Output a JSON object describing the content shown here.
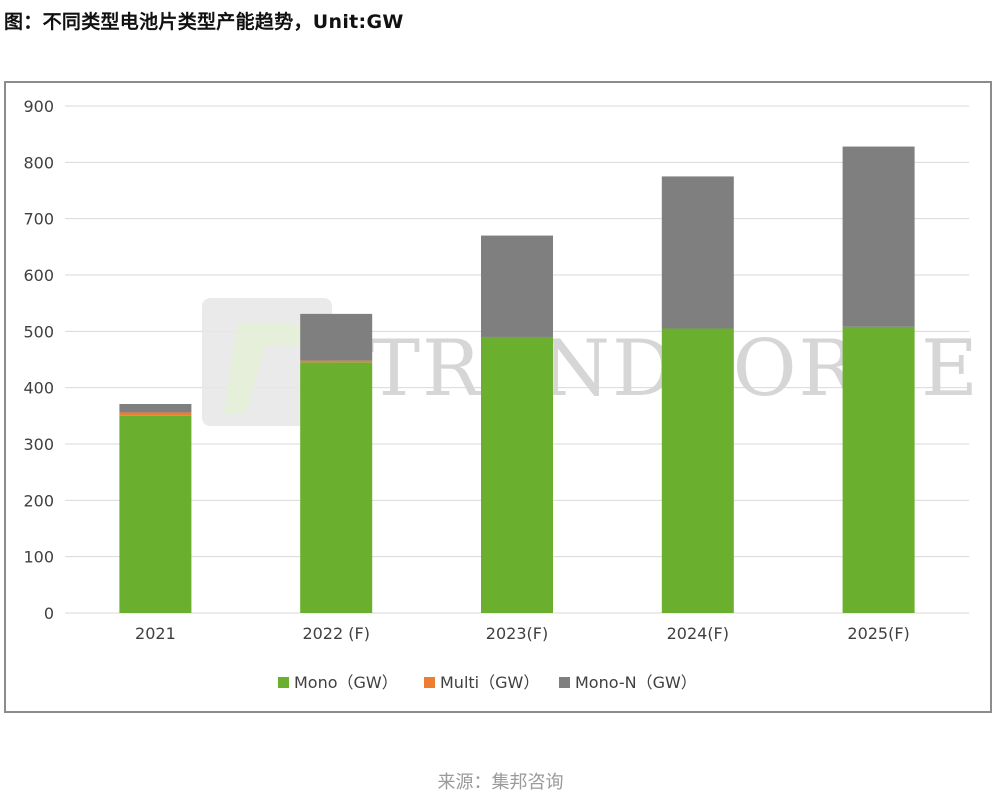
{
  "figure_title": "图：不同类型电池片类型产能趋势，Unit:GW",
  "source_label": "来源：集邦咨询",
  "watermark": "TRENDFORCE",
  "colors": {
    "mono": "#6aaf2e",
    "multi": "#ed7d31",
    "mono_n": "#7f7f7f",
    "grid": "#d9d9d9"
  },
  "chart_data": {
    "type": "bar",
    "stacked": true,
    "categories": [
      "2021",
      "2022 (F)",
      "2023(F)",
      "2024(F)",
      "2025(F)"
    ],
    "series": [
      {
        "name": "Mono（GW）",
        "values": [
          350,
          445,
          490,
          505,
          508
        ],
        "color": "#6aaf2e"
      },
      {
        "name": "Multi（GW）",
        "values": [
          6,
          3,
          0,
          0,
          0
        ],
        "color": "#ed7d31"
      },
      {
        "name": "Mono-N（GW）",
        "values": [
          15,
          83,
          180,
          270,
          320
        ],
        "color": "#7f7f7f"
      }
    ],
    "ylim": [
      0,
      900
    ],
    "yticks": [
      "0",
      "100",
      "200",
      "300",
      "400",
      "500",
      "600",
      "700",
      "800",
      "900"
    ],
    "grid": true,
    "legend_position": "bottom"
  }
}
